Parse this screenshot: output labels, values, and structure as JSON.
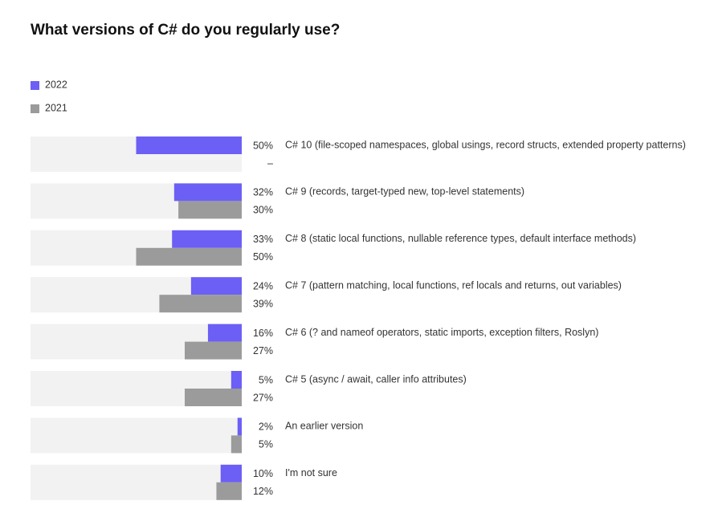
{
  "chart_data": {
    "type": "bar",
    "orientation": "horizontal",
    "title": "What versions of C# do you regularly use?",
    "categories": [
      "C# 10 (file-scoped namespaces, global usings, record structs, extended property patterns)",
      "C# 9 (records, target-typed new, top-level statements)",
      "C# 8 (static local functions, nullable reference types, default interface methods)",
      "C# 7 (pattern matching, local functions, ref locals and returns, out variables)",
      "C# 6 (? and nameof operators, static imports, exception filters, Roslyn)",
      "C# 5 (async / await, caller info attributes)",
      "An earlier version",
      "I'm not sure"
    ],
    "series": [
      {
        "name": "2022",
        "color": "#6c5ff5",
        "values": [
          50,
          32,
          33,
          24,
          16,
          5,
          2,
          10
        ],
        "value_labels": [
          "50%",
          "32%",
          "33%",
          "24%",
          "16%",
          "5%",
          "2%",
          "10%"
        ]
      },
      {
        "name": "2021",
        "color": "#9b9b9b",
        "values": [
          null,
          30,
          50,
          39,
          27,
          27,
          5,
          12
        ],
        "value_labels": [
          "–",
          "30%",
          "50%",
          "39%",
          "27%",
          "27%",
          "5%",
          "12%"
        ]
      }
    ],
    "xlim": [
      0,
      100
    ]
  }
}
